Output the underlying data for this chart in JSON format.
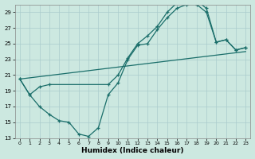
{
  "xlabel": "Humidex (Indice chaleur)",
  "bg_color": "#cce8e0",
  "grid_color": "#aacccc",
  "line_color": "#1a6e6a",
  "xlim": [
    -0.5,
    23.5
  ],
  "ylim": [
    13,
    30
  ],
  "xticks": [
    0,
    1,
    2,
    3,
    4,
    5,
    6,
    7,
    8,
    9,
    10,
    11,
    12,
    13,
    14,
    15,
    16,
    17,
    18,
    19,
    20,
    21,
    22,
    23
  ],
  "yticks": [
    13,
    15,
    17,
    19,
    21,
    23,
    25,
    27,
    29
  ],
  "line1_x": [
    0,
    1,
    2,
    3,
    4,
    5,
    6,
    7,
    8,
    9,
    10,
    11,
    12,
    13,
    14,
    15,
    16,
    17,
    18,
    19,
    20,
    21,
    22,
    23
  ],
  "line1_y": [
    20.5,
    18.5,
    17.0,
    16.0,
    15.2,
    15.0,
    13.5,
    13.2,
    14.3,
    18.5,
    20.0,
    23.0,
    24.8,
    25.0,
    26.8,
    28.3,
    29.5,
    30.0,
    30.0,
    29.0,
    25.2,
    25.5,
    24.2,
    24.5
  ],
  "line2_x": [
    0,
    1,
    2,
    3,
    9,
    10,
    11,
    12,
    13,
    14,
    15,
    16,
    17,
    18,
    19,
    20,
    21,
    22,
    23
  ],
  "line2_y": [
    20.5,
    18.5,
    19.5,
    19.8,
    19.8,
    21.0,
    23.2,
    25.0,
    26.0,
    27.2,
    29.0,
    30.2,
    30.5,
    30.5,
    29.5,
    25.2,
    25.5,
    24.2,
    24.5
  ],
  "line3_x": [
    0,
    23
  ],
  "line3_y": [
    20.5,
    24.0
  ]
}
